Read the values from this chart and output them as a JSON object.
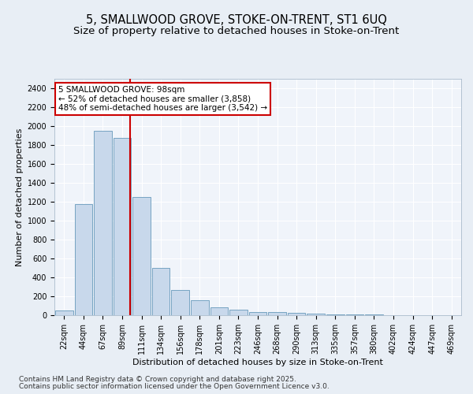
{
  "title1": "5, SMALLWOOD GROVE, STOKE-ON-TRENT, ST1 6UQ",
  "title2": "Size of property relative to detached houses in Stoke-on-Trent",
  "xlabel": "Distribution of detached houses by size in Stoke-on-Trent",
  "ylabel": "Number of detached properties",
  "bin_labels": [
    "22sqm",
    "44sqm",
    "67sqm",
    "89sqm",
    "111sqm",
    "134sqm",
    "156sqm",
    "178sqm",
    "201sqm",
    "223sqm",
    "246sqm",
    "268sqm",
    "290sqm",
    "313sqm",
    "335sqm",
    "357sqm",
    "380sqm",
    "402sqm",
    "424sqm",
    "447sqm",
    "469sqm"
  ],
  "bar_values": [
    50,
    1175,
    1950,
    1875,
    1250,
    500,
    265,
    155,
    80,
    60,
    35,
    35,
    25,
    15,
    10,
    5,
    5,
    3,
    2,
    1,
    1
  ],
  "bar_color": "#c8d8eb",
  "bar_edge_color": "#6699bb",
  "vline_color": "#cc0000",
  "vline_x": 3.41,
  "annotation_text": "5 SMALLWOOD GROVE: 98sqm\n← 52% of detached houses are smaller (3,858)\n48% of semi-detached houses are larger (3,542) →",
  "annotation_box_facecolor": "#ffffff",
  "annotation_box_edgecolor": "#cc0000",
  "ylim": [
    0,
    2500
  ],
  "yticks": [
    0,
    200,
    400,
    600,
    800,
    1000,
    1200,
    1400,
    1600,
    1800,
    2000,
    2200,
    2400
  ],
  "footer1": "Contains HM Land Registry data © Crown copyright and database right 2025.",
  "footer2": "Contains public sector information licensed under the Open Government Licence v3.0.",
  "bg_color": "#e8eef5",
  "plot_bg_color": "#f0f4fa",
  "grid_color": "#ffffff",
  "title_fontsize": 10.5,
  "subtitle_fontsize": 9.5,
  "axis_label_fontsize": 8,
  "tick_fontsize": 7,
  "footer_fontsize": 6.5,
  "annot_fontsize": 7.5
}
